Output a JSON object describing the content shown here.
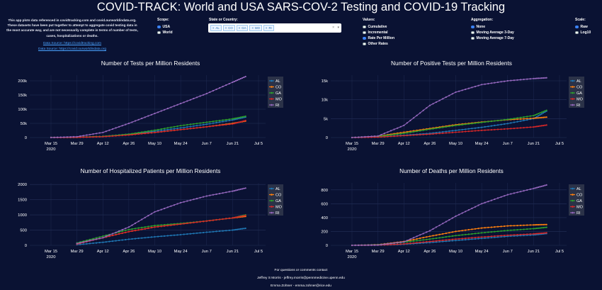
{
  "title": "COVID-TRACK: World and USA SARS-COV-2 Testing and COVID-19 Tracking",
  "description": "This app plots data referenced in covidtracking.com and covid.ourworldindata.org. These datasets have been put together to attempt to aggregate covid testing data in the most accurate way, and are not necessarily complete in terms of number of tests, cases, hospitalizations or deaths.",
  "sources": [
    "Data Source: https://covidtracking.com",
    "Data Source: https://covid.ourworldindata.org"
  ],
  "scope": {
    "label": "Scope:",
    "options": [
      "USA",
      "World"
    ],
    "selected": "USA"
  },
  "state": {
    "label": "State or Country:",
    "tags": [
      "AL",
      "CO",
      "GA",
      "MO",
      "RI"
    ],
    "clear": "×",
    "arrow": "▾"
  },
  "values": {
    "label": "Values:",
    "options": [
      "Cumulative",
      "Incremental",
      "Rate Per Million",
      "Other Rates"
    ],
    "selected": "Rate Per Million"
  },
  "aggregation": {
    "label": "Aggregation:",
    "options": [
      "None",
      "Moving Average 3-Day",
      "Moving Average 7-Day"
    ],
    "selected": "None"
  },
  "scale": {
    "label": "Scale:",
    "options": [
      "Raw",
      "Log10"
    ],
    "selected": "Raw"
  },
  "colors": {
    "AL": "#1f77b4",
    "CO": "#ff7f0e",
    "GA": "#2ca02c",
    "MO": "#d62728",
    "RI": "#9467bd"
  },
  "x_tick_labels": [
    "Mar 15",
    "Mar 29",
    "Apr 12",
    "Apr 26",
    "May 10",
    "May 24",
    "Jun 7",
    "Jun 21",
    "Jul 5"
  ],
  "x_year_label": "2020",
  "chart_data": [
    {
      "type": "line",
      "title": "Number of Tests per Million Residents",
      "x": [
        "Mar 15",
        "Mar 29",
        "Apr 12",
        "Apr 26",
        "May 10",
        "May 24",
        "Jun 7",
        "Jun 21",
        "Jun 28"
      ],
      "ylim": [
        0,
        220000
      ],
      "yticks": [
        0,
        50000,
        100000,
        150000,
        200000
      ],
      "ytick_labels": [
        "0",
        "50k",
        "100k",
        "150k",
        "200k"
      ],
      "series": [
        {
          "name": "AL",
          "values": [
            200,
            1000,
            4000,
            12000,
            22000,
            34000,
            47000,
            62000,
            72000
          ]
        },
        {
          "name": "CO",
          "values": [
            200,
            1000,
            4000,
            10000,
            18000,
            28000,
            38000,
            50000,
            58000
          ]
        },
        {
          "name": "GA",
          "values": [
            200,
            800,
            4000,
            12000,
            26000,
            42000,
            54000,
            66000,
            75000
          ]
        },
        {
          "name": "MO",
          "values": [
            100,
            600,
            3000,
            9000,
            18000,
            28000,
            38000,
            48000,
            60000
          ]
        },
        {
          "name": "RI",
          "values": [
            200,
            3000,
            18000,
            50000,
            85000,
            120000,
            155000,
            195000,
            215000
          ]
        }
      ]
    },
    {
      "type": "line",
      "title": "Number of Positive Tests per Million Residents",
      "x": [
        "Mar 15",
        "Mar 29",
        "Apr 12",
        "Apr 26",
        "May 10",
        "May 24",
        "Jun 7",
        "Jun 21",
        "Jun 28"
      ],
      "ylim": [
        0,
        16500
      ],
      "yticks": [
        0,
        5000,
        10000,
        15000
      ],
      "ytick_labels": [
        "0",
        "5k",
        "10k",
        "15k"
      ],
      "series": [
        {
          "name": "AL",
          "values": [
            0,
            150,
            600,
            1100,
            1900,
            2700,
            3700,
            5000,
            7000
          ]
        },
        {
          "name": "CO",
          "values": [
            0,
            350,
            1400,
            2400,
            3400,
            4100,
            4700,
            5100,
            5400
          ]
        },
        {
          "name": "GA",
          "values": [
            0,
            300,
            1100,
            2200,
            3200,
            4000,
            4800,
            5800,
            7200
          ]
        },
        {
          "name": "MO",
          "values": [
            0,
            120,
            500,
            900,
            1400,
            1900,
            2300,
            2800,
            3300
          ]
        },
        {
          "name": "RI",
          "values": [
            0,
            400,
            3200,
            8500,
            12000,
            14000,
            15000,
            15600,
            15800
          ]
        }
      ]
    },
    {
      "type": "line",
      "title": "Number of Hospitalized Patients per Million Residents",
      "x": [
        "Mar 15",
        "Mar 29",
        "Apr 12",
        "Apr 26",
        "May 10",
        "May 24",
        "Jun 7",
        "Jun 21",
        "Jun 28"
      ],
      "ylim": [
        0,
        2050
      ],
      "yticks": [
        0,
        500,
        1000,
        1500,
        2000
      ],
      "ytick_labels": [
        "0",
        "500",
        "1000",
        "1500",
        "2000"
      ],
      "series": [
        {
          "name": "AL",
          "values": [
            null,
            20,
            100,
            200,
            280,
            350,
            430,
            500,
            560
          ]
        },
        {
          "name": "CO",
          "values": [
            null,
            60,
            250,
            450,
            600,
            700,
            800,
            900,
            950
          ]
        },
        {
          "name": "GA",
          "values": [
            null,
            80,
            300,
            520,
            650,
            720,
            800,
            900,
            1000
          ]
        },
        {
          "name": "MO",
          "values": [
            null,
            40,
            250,
            450,
            600,
            700,
            800,
            900,
            980
          ]
        },
        {
          "name": "RI",
          "values": [
            null,
            60,
            250,
            600,
            1100,
            1400,
            1620,
            1780,
            1880
          ]
        }
      ]
    },
    {
      "type": "line",
      "title": "Number of Deaths per Million Residents",
      "x": [
        "Mar 15",
        "Mar 29",
        "Apr 12",
        "Apr 26",
        "May 10",
        "May 24",
        "Jun 7",
        "Jun 21",
        "Jun 28"
      ],
      "ylim": [
        0,
        900
      ],
      "yticks": [
        0,
        200,
        400,
        600,
        800
      ],
      "ytick_labels": [
        "0",
        "200",
        "400",
        "600",
        "800"
      ],
      "series": [
        {
          "name": "AL",
          "values": [
            0,
            2,
            15,
            40,
            70,
            100,
            130,
            150,
            170
          ]
        },
        {
          "name": "CO",
          "values": [
            0,
            10,
            55,
            130,
            200,
            250,
            280,
            295,
            300
          ]
        },
        {
          "name": "GA",
          "values": [
            0,
            8,
            45,
            90,
            140,
            180,
            215,
            240,
            260
          ]
        },
        {
          "name": "MO",
          "values": [
            0,
            3,
            20,
            55,
            90,
            120,
            145,
            165,
            180
          ]
        },
        {
          "name": "RI",
          "values": [
            0,
            5,
            50,
            210,
            420,
            600,
            730,
            820,
            870
          ]
        }
      ]
    }
  ],
  "footer": [
    "For questions or comments contact",
    "Jeffrey S Morris - jeffrey.morris@pennmedicine.upenn.edu",
    "Emma Zohner - emma.zohner@rice.edu"
  ]
}
